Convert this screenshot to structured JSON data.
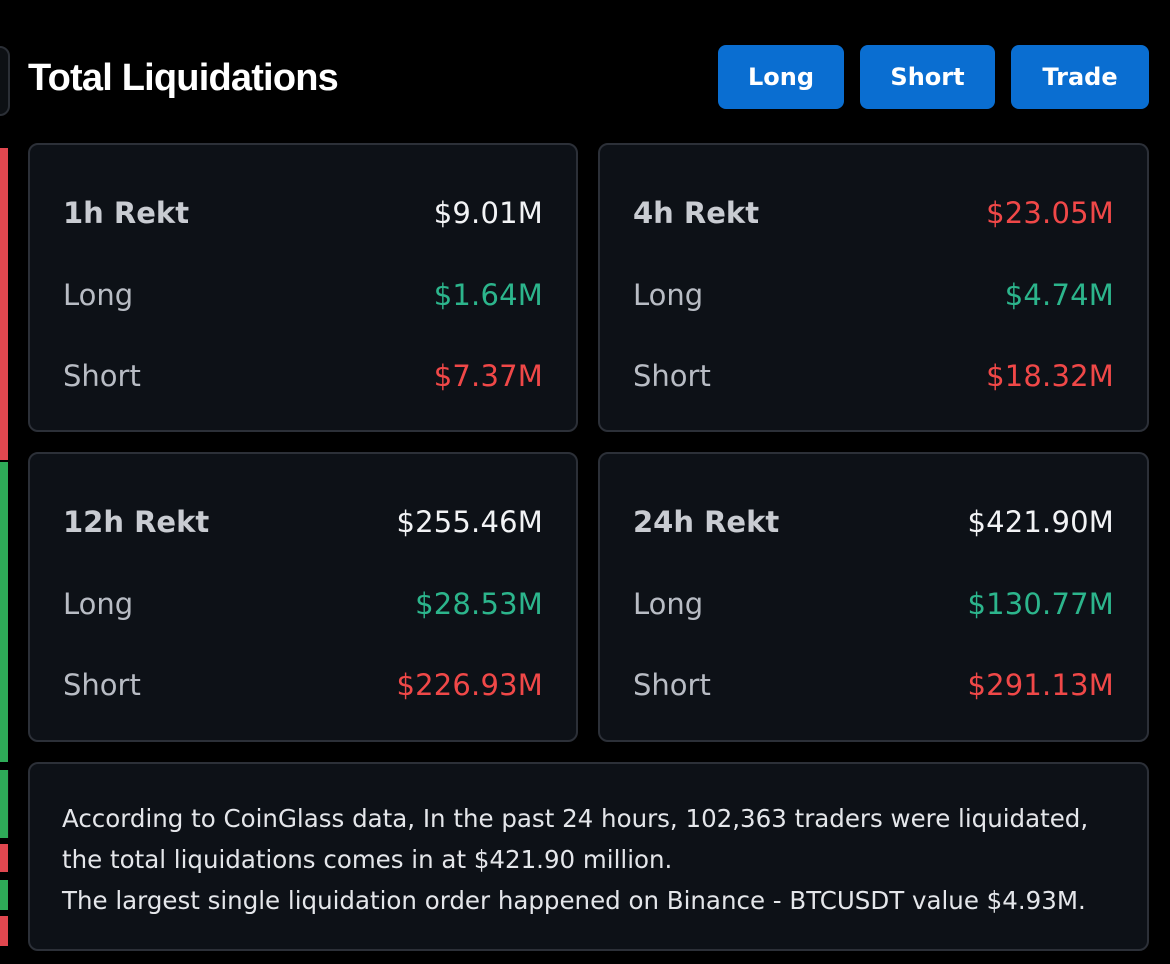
{
  "header": {
    "title": "Total Liquidations",
    "buttons": {
      "long": "Long",
      "short": "Short",
      "trade": "Trade"
    }
  },
  "cards": [
    {
      "period": "1h Rekt",
      "total": "$9.01M",
      "total_color": "white",
      "long_label": "Long",
      "long_value": "$1.64M",
      "short_label": "Short",
      "short_value": "$7.37M"
    },
    {
      "period": "4h Rekt",
      "total": "$23.05M",
      "total_color": "red",
      "long_label": "Long",
      "long_value": "$4.74M",
      "short_label": "Short",
      "short_value": "$18.32M"
    },
    {
      "period": "12h Rekt",
      "total": "$255.46M",
      "total_color": "white",
      "long_label": "Long",
      "long_value": "$28.53M",
      "short_label": "Short",
      "short_value": "$226.93M"
    },
    {
      "period": "24h Rekt",
      "total": "$421.90M",
      "total_color": "white",
      "long_label": "Long",
      "long_value": "$130.77M",
      "short_label": "Short",
      "short_value": "$291.13M"
    }
  ],
  "summary": {
    "line1": "According to CoinGlass data, In the past 24 hours, 102,363 traders were liquidated, the total liquidations comes in at $421.90 million.",
    "line2": "The largest single liquidation order happened on Binance - BTCUSDT value $4.93M."
  },
  "colors": {
    "accent_button": "#0a6ed1",
    "long_green": "#2cb58c",
    "short_red": "#f04848",
    "card_bg": "#0d1117",
    "page_bg": "#000000"
  }
}
